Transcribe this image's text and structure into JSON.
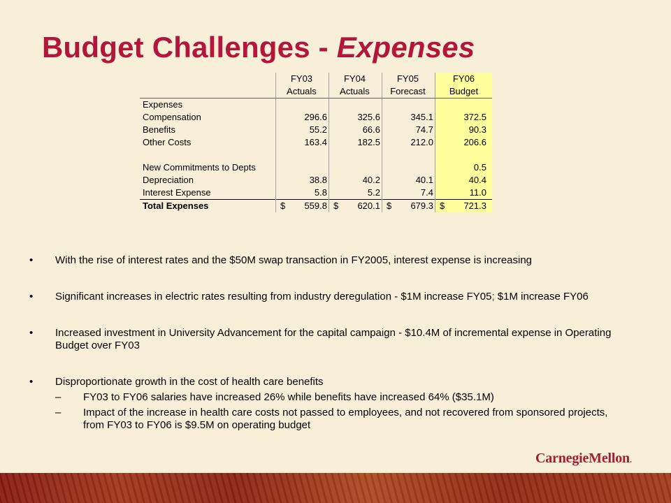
{
  "title": {
    "prefix": "Budget Challenges - ",
    "emphasis": "Expenses"
  },
  "table": {
    "columns": [
      {
        "year": "FY03",
        "type": "Actuals"
      },
      {
        "year": "FY04",
        "type": "Actuals"
      },
      {
        "year": "FY05",
        "type": "Forecast"
      },
      {
        "year": "FY06",
        "type": "Budget"
      }
    ],
    "section_label": "Expenses",
    "rows": [
      {
        "label": "Compensation",
        "values": [
          "296.6",
          "325.6",
          "345.1",
          "372.5"
        ]
      },
      {
        "label": "Benefits",
        "values": [
          "55.2",
          "66.6",
          "74.7",
          "90.3"
        ]
      },
      {
        "label": "Other Costs",
        "values": [
          "163.4",
          "182.5",
          "212.0",
          "206.6"
        ]
      },
      {
        "label": "",
        "values": [
          "",
          "",
          "",
          ""
        ]
      },
      {
        "label": "New Commitments to Depts",
        "values": [
          "",
          "",
          "",
          "0.5"
        ]
      },
      {
        "label": "Depreciation",
        "values": [
          "38.8",
          "40.2",
          "40.1",
          "40.4"
        ]
      },
      {
        "label": "Interest Expense",
        "values": [
          "5.8",
          "5.2",
          "7.4",
          "11.0"
        ]
      }
    ],
    "total": {
      "label": "Total Expenses",
      "currency": "$",
      "values": [
        "559.8",
        "620.1",
        "679.3",
        "721.3"
      ]
    },
    "highlight_color": "#ffff9e"
  },
  "bullets": [
    {
      "text": "With the rise of interest rates and the $50M swap transaction in FY2005, interest expense is increasing",
      "sub": []
    },
    {
      "text": "Significant increases in electric rates resulting from industry deregulation - $1M increase FY05; $1M increase FY06",
      "sub": []
    },
    {
      "text": "Increased investment in University Advancement for the capital campaign - $10.4M of incremental expense in Operating Budget over FY03",
      "sub": []
    },
    {
      "text": "Disproportionate growth in the cost of health care benefits",
      "sub": [
        "FY03 to FY06 salaries have increased 26% while benefits have increased 64% ($35.1M)",
        "Impact of the increase in health care costs not passed to employees, and not recovered from sponsored projects, from FY03 to FY06 is $9.5M on operating budget"
      ]
    }
  ],
  "bullet_symbol": "•",
  "dash_symbol": "–",
  "logo": {
    "text": "CarnegieMellon",
    "mark": "."
  },
  "colors": {
    "title": "#b3163a",
    "background": "#f8efd8",
    "logo": "#a51d35"
  }
}
